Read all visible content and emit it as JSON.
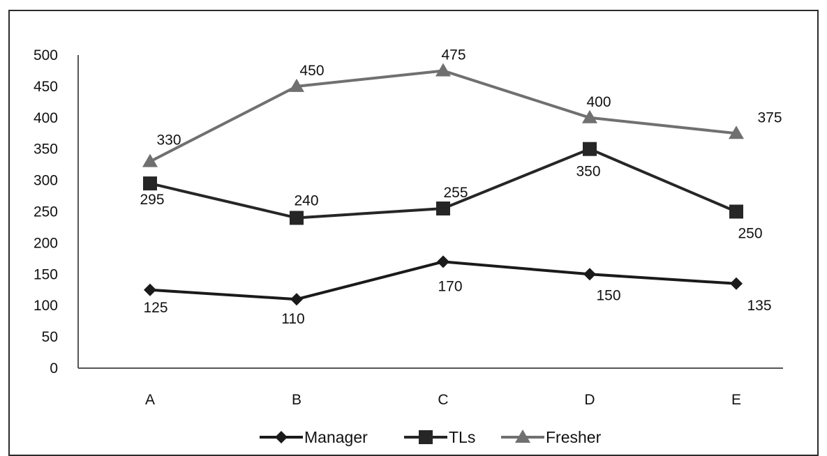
{
  "chart_data": {
    "type": "line",
    "title": "",
    "xlabel": "",
    "ylabel": "",
    "categories": [
      "A",
      "B",
      "C",
      "D",
      "E"
    ],
    "ylim": [
      0,
      500
    ],
    "yticks": [
      0,
      50,
      100,
      150,
      200,
      250,
      300,
      350,
      400,
      450,
      500
    ],
    "grid": false,
    "legend_position": "bottom",
    "series": [
      {
        "name": "Manager",
        "values": [
          125,
          110,
          170,
          150,
          135
        ],
        "marker": "diamond",
        "color": "#1a1a1a"
      },
      {
        "name": "TLs",
        "values": [
          295,
          240,
          255,
          350,
          250
        ],
        "marker": "square",
        "color": "#262626"
      },
      {
        "name": "Fresher",
        "values": [
          330,
          450,
          475,
          400,
          375
        ],
        "marker": "triangle",
        "color": "#707070"
      }
    ]
  }
}
